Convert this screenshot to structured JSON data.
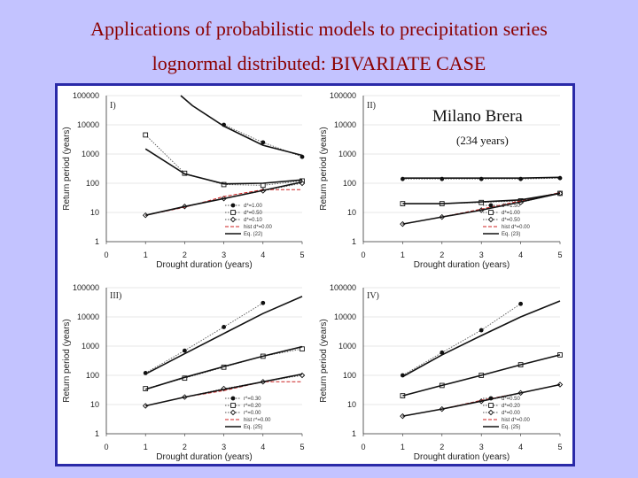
{
  "title": {
    "line1": "Applications of probabilistic models to precipitation series",
    "line2": "lognormal distributed: BIVARIATE CASE"
  },
  "annotation": {
    "station": "Milano Brera",
    "years": "(234 years)"
  },
  "colors": {
    "background": "#c3c3ff",
    "title": "#8b0000",
    "frame": "#2a2aa8",
    "series_black": "#111111",
    "series_dash": "#555555",
    "series_red": "#cc2222"
  },
  "chart_data": [
    {
      "type": "line",
      "panel": "I)",
      "xlabel": "Drought duration (years)",
      "ylabel": "Return period (years)",
      "xticks": [
        "0",
        "1",
        "2",
        "3",
        "4",
        "5"
      ],
      "yticks": [
        "1",
        "10",
        "100",
        "1000",
        "10000",
        "100000"
      ],
      "xlim": [
        0,
        5
      ],
      "ylim": [
        1,
        100000
      ],
      "yscale": "log",
      "series": [
        {
          "name": "d*=1.00",
          "marker": "filled-circle",
          "style": "dotted",
          "x": [
            3,
            4,
            5
          ],
          "values": [
            10000,
            2500,
            800
          ]
        },
        {
          "name": "d*=0.50",
          "marker": "square",
          "style": "dotted",
          "x": [
            1,
            2,
            3,
            4,
            5
          ],
          "values": [
            4500,
            220,
            90,
            85,
            120
          ]
        },
        {
          "name": "d*=0.10",
          "marker": "diamond",
          "style": "dotted",
          "x": [
            1,
            2,
            3,
            4,
            5
          ],
          "values": [
            8,
            16,
            30,
            55,
            100
          ]
        },
        {
          "name": "hist d*=0.00",
          "marker": "none",
          "style": "red-dashed",
          "x": [
            1,
            2,
            3,
            4,
            5
          ],
          "values": [
            8,
            15,
            35,
            60,
            60
          ]
        },
        {
          "name": "Eq. (22)",
          "marker": "none",
          "style": "solid",
          "x": [
            1.9,
            2.2,
            3,
            4,
            5
          ],
          "values": [
            100000,
            45000,
            9000,
            2000,
            900
          ]
        },
        {
          "name": "Eq. (22) d*=0.50",
          "marker": "none",
          "style": "solid",
          "x": [
            1,
            2,
            3,
            4,
            5
          ],
          "values": [
            1500,
            210,
            95,
            100,
            130
          ]
        },
        {
          "name": "Eq. (22) d*=0.10",
          "marker": "none",
          "style": "solid",
          "x": [
            1,
            2,
            3,
            4,
            5
          ],
          "values": [
            8,
            16,
            30,
            57,
            110
          ]
        }
      ],
      "legend": [
        "d*=1.00",
        "d*=0.50",
        "d*=0.10",
        "hist d*=0.00",
        "Eq. (22)"
      ]
    },
    {
      "type": "line",
      "panel": "II)",
      "xlabel": "Drought duration (years)",
      "ylabel": "Return period (years)",
      "xticks": [
        "0",
        "1",
        "2",
        "3",
        "4",
        "5"
      ],
      "yticks": [
        "1",
        "10",
        "100",
        "1000",
        "10000",
        "100000"
      ],
      "xlim": [
        0,
        5
      ],
      "ylim": [
        1,
        100000
      ],
      "yscale": "log",
      "series": [
        {
          "name": "d*=1.50",
          "marker": "filled-circle",
          "style": "dotted",
          "x": [
            1,
            2,
            3,
            4,
            5
          ],
          "values": [
            140,
            140,
            140,
            140,
            150
          ]
        },
        {
          "name": "d*=1.00",
          "marker": "square",
          "style": "dotted",
          "x": [
            1,
            2,
            3,
            4,
            5
          ],
          "values": [
            20,
            20,
            22,
            25,
            45
          ]
        },
        {
          "name": "d*=0.50",
          "marker": "diamond",
          "style": "dotted",
          "x": [
            1,
            2,
            3,
            4,
            5
          ],
          "values": [
            4,
            7,
            12,
            22,
            45
          ]
        },
        {
          "name": "hist d*=0.00",
          "marker": "none",
          "style": "red-dashed",
          "x": [
            1,
            2,
            3,
            4,
            5
          ],
          "values": [
            4,
            7,
            13,
            25,
            48
          ]
        },
        {
          "name": "Eq. (23)",
          "marker": "none",
          "style": "solid",
          "x": [
            1,
            2,
            3,
            4,
            5
          ],
          "values": [
            150,
            150,
            150,
            150,
            160
          ]
        },
        {
          "name": "Eq. (23) d*=1.00",
          "marker": "none",
          "style": "solid",
          "x": [
            1,
            2,
            3,
            4,
            5
          ],
          "values": [
            20,
            20,
            23,
            27,
            45
          ]
        },
        {
          "name": "Eq. (23) d*=0.50",
          "marker": "none",
          "style": "solid",
          "x": [
            1,
            2,
            3,
            4,
            5
          ],
          "values": [
            4,
            7,
            12,
            23,
            45
          ]
        }
      ],
      "legend": [
        "d*=1.50",
        "d*=1.00",
        "d*=0.50",
        "hist d*=0.00",
        "Eq. (23)"
      ]
    },
    {
      "type": "line",
      "panel": "III)",
      "xlabel": "Drought duration (years)",
      "ylabel": "Return period (years)",
      "xticks": [
        "0",
        "1",
        "2",
        "3",
        "4",
        "5"
      ],
      "yticks": [
        "1",
        "10",
        "100",
        "1000",
        "10000",
        "100000"
      ],
      "xlim": [
        0,
        5
      ],
      "ylim": [
        1,
        100000
      ],
      "yscale": "log",
      "series": [
        {
          "name": "r*=0.30",
          "marker": "filled-circle",
          "style": "dotted",
          "x": [
            1,
            2,
            3,
            4
          ],
          "values": [
            120,
            700,
            4500,
            30000
          ]
        },
        {
          "name": "r*=0.20",
          "marker": "square",
          "style": "dotted",
          "x": [
            1,
            2,
            3,
            4,
            5
          ],
          "values": [
            35,
            80,
            190,
            450,
            800
          ]
        },
        {
          "name": "r*=0.00",
          "marker": "diamond",
          "style": "dotted",
          "x": [
            1,
            2,
            3,
            4,
            5
          ],
          "values": [
            9,
            18,
            35,
            60,
            100
          ]
        },
        {
          "name": "hist r*=0.00",
          "marker": "none",
          "style": "red-dashed",
          "x": [
            1,
            2,
            3,
            4,
            5
          ],
          "values": [
            9,
            18,
            30,
            60,
            60
          ]
        },
        {
          "name": "Eq. (25)",
          "marker": "none",
          "style": "solid",
          "x": [
            1,
            2,
            3,
            4,
            5
          ],
          "values": [
            110,
            550,
            2700,
            13000,
            50000
          ]
        },
        {
          "name": "Eq. (25) r*=0.20",
          "marker": "none",
          "style": "solid",
          "x": [
            1,
            2,
            3,
            4,
            5
          ],
          "values": [
            33,
            85,
            200,
            450,
            950
          ]
        },
        {
          "name": "Eq. (25) r*=0.00",
          "marker": "none",
          "style": "solid",
          "x": [
            1,
            2,
            3,
            4,
            5
          ],
          "values": [
            9,
            18,
            33,
            60,
            110
          ]
        }
      ],
      "legend": [
        "r*=0.30",
        "r*=0.20",
        "r*=0.00",
        "hist r*=0.00",
        "Eq. (25)"
      ]
    },
    {
      "type": "line",
      "panel": "IV)",
      "xlabel": "Drought duration (years)",
      "ylabel": "Return period (years)",
      "xticks": [
        "0",
        "1",
        "2",
        "3",
        "4",
        "5"
      ],
      "yticks": [
        "1",
        "10",
        "100",
        "1000",
        "10000",
        "100000"
      ],
      "xlim": [
        0,
        5
      ],
      "ylim": [
        1,
        100000
      ],
      "yscale": "log",
      "series": [
        {
          "name": "d*=0.50",
          "marker": "filled-circle",
          "style": "dotted",
          "x": [
            1,
            2,
            3,
            4
          ],
          "values": [
            100,
            600,
            3500,
            28000
          ]
        },
        {
          "name": "d*=0.20",
          "marker": "square",
          "style": "dotted",
          "x": [
            1,
            2,
            3,
            4,
            5
          ],
          "values": [
            20,
            45,
            100,
            230,
            500
          ]
        },
        {
          "name": "d*=0.00",
          "marker": "diamond",
          "style": "dotted",
          "x": [
            1,
            2,
            3,
            4,
            5
          ],
          "values": [
            4,
            7,
            13,
            25,
            48
          ]
        },
        {
          "name": "hist d*=0.00",
          "marker": "none",
          "style": "red-dashed",
          "x": [
            1,
            2,
            3,
            4,
            5
          ],
          "values": [
            4,
            7,
            14,
            25,
            48
          ]
        },
        {
          "name": "Eq. (25)",
          "marker": "none",
          "style": "solid",
          "x": [
            1,
            2,
            3,
            4,
            5
          ],
          "values": [
            90,
            500,
            2300,
            10000,
            35000
          ]
        },
        {
          "name": "Eq. (25) d*=0.20",
          "marker": "none",
          "style": "solid",
          "x": [
            1,
            2,
            3,
            4,
            5
          ],
          "values": [
            20,
            45,
            100,
            230,
            500
          ]
        },
        {
          "name": "Eq. (25) d*=0.00",
          "marker": "none",
          "style": "solid",
          "x": [
            1,
            2,
            3,
            4,
            5
          ],
          "values": [
            4,
            7,
            13,
            25,
            48
          ]
        }
      ],
      "legend": [
        "d*=0.50",
        "d*=0.20",
        "d*=0.00",
        "hist d*=0.00",
        "Eq. (25)"
      ]
    }
  ]
}
